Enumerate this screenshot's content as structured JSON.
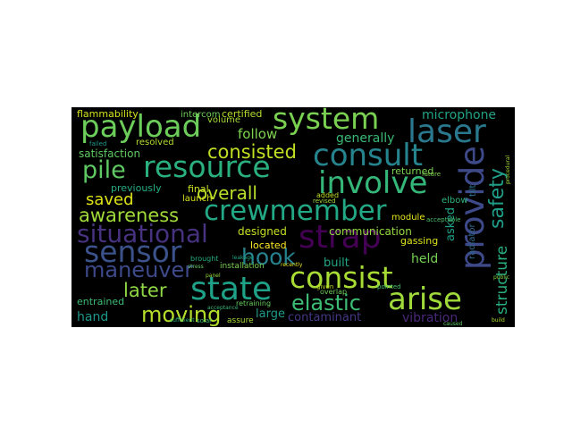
{
  "words": [
    {
      "id": "payload",
      "text": "payload",
      "color": "#6ccd5a"
    },
    {
      "id": "system",
      "text": "system",
      "color": "#7ad151"
    },
    {
      "id": "laser",
      "text": "laser",
      "color": "#2a788e"
    },
    {
      "id": "consult",
      "text": "consult",
      "color": "#25848e"
    },
    {
      "id": "provide",
      "text": "provide",
      "color": "#3e4989"
    },
    {
      "id": "resource",
      "text": "resource",
      "color": "#2ab07f"
    },
    {
      "id": "consisted",
      "text": "consisted",
      "color": "#c2df23"
    },
    {
      "id": "pile",
      "text": "pile",
      "color": "#5ec962"
    },
    {
      "id": "involve",
      "text": "involve",
      "color": "#35b779"
    },
    {
      "id": "crewmember",
      "text": "crewmember",
      "color": "#22a884"
    },
    {
      "id": "awareness",
      "text": "awareness",
      "color": "#a0da39"
    },
    {
      "id": "situational",
      "text": "situational",
      "color": "#46327e"
    },
    {
      "id": "strap",
      "text": "strap",
      "color": "#440154"
    },
    {
      "id": "sensor",
      "text": "sensor",
      "color": "#3b528b"
    },
    {
      "id": "hook",
      "text": "hook",
      "color": "#26828e"
    },
    {
      "id": "state",
      "text": "state",
      "color": "#1fa187"
    },
    {
      "id": "consist",
      "text": "consist",
      "color": "#a8db34"
    },
    {
      "id": "maneuver",
      "text": "maneuver",
      "color": "#3e4989"
    },
    {
      "id": "later",
      "text": "later",
      "color": "#8fd744"
    },
    {
      "id": "arise",
      "text": "arise",
      "color": "#9fda3a"
    },
    {
      "id": "moving",
      "text": "moving",
      "color": "#b5de2b"
    },
    {
      "id": "elastic",
      "text": "elastic",
      "color": "#3dbc74"
    },
    {
      "id": "overall",
      "text": "overall",
      "color": "#b8de29"
    },
    {
      "id": "saved",
      "text": "saved",
      "color": "#dde318"
    },
    {
      "id": "safety",
      "text": "safety",
      "color": "#1f9e89"
    },
    {
      "id": "structure",
      "text": "structure",
      "color": "#29af7f"
    },
    {
      "id": "flammability",
      "text": "flammability",
      "color": "#d2e21b"
    },
    {
      "id": "intercom",
      "text": "intercom",
      "color": "#6ece58"
    },
    {
      "id": "certified",
      "text": "certified",
      "color": "#b5de2b"
    },
    {
      "id": "microphone",
      "text": "microphone",
      "color": "#20a386"
    },
    {
      "id": "follow",
      "text": "follow",
      "color": "#7fd34e"
    },
    {
      "id": "generally",
      "text": "generally",
      "color": "#3aba76"
    },
    {
      "id": "satisfaction",
      "text": "satisfaction",
      "color": "#5ec962"
    },
    {
      "id": "resolved",
      "text": "resolved",
      "color": "#b5de2b"
    },
    {
      "id": "previously",
      "text": "previously",
      "color": "#25ac82"
    },
    {
      "id": "final",
      "text": "final",
      "color": "#c8e020"
    },
    {
      "id": "launch",
      "text": "launch",
      "color": "#d8e219"
    },
    {
      "id": "returned",
      "text": "returned",
      "color": "#7ad151"
    },
    {
      "id": "designed",
      "text": "designed",
      "color": "#c5e021"
    },
    {
      "id": "located",
      "text": "located",
      "color": "#fde725"
    },
    {
      "id": "communication",
      "text": "communication",
      "color": "#95d840"
    },
    {
      "id": "asked",
      "text": "asked",
      "color": "#1fa088"
    },
    {
      "id": "module",
      "text": "module",
      "color": "#e2e418"
    },
    {
      "id": "gassing",
      "text": "gassing",
      "color": "#dde318"
    },
    {
      "id": "held",
      "text": "held",
      "color": "#75d054"
    },
    {
      "id": "built",
      "text": "built",
      "color": "#22a785"
    },
    {
      "id": "large",
      "text": "large",
      "color": "#1e9c89"
    },
    {
      "id": "contaminant",
      "text": "contaminant",
      "color": "#443983"
    },
    {
      "id": "vibration",
      "text": "vibration",
      "color": "#482878"
    },
    {
      "id": "hand",
      "text": "hand",
      "color": "#1f988b"
    },
    {
      "id": "entrained",
      "text": "entrained",
      "color": "#3dbc74"
    },
    {
      "id": "radiator",
      "text": "radiator",
      "color": "#31688e"
    },
    {
      "id": "elbow",
      "text": "elbow",
      "color": "#2fb47c"
    },
    {
      "id": "installation",
      "text": "installation",
      "color": "#7ad151"
    },
    {
      "id": "volume",
      "text": "volume",
      "color": "#a5db36"
    },
    {
      "id": "tilt",
      "text": "tilt",
      "color": "#2c728e"
    },
    {
      "id": "added",
      "text": "added",
      "color": "#c2df23"
    },
    {
      "id": "given",
      "text": "given",
      "color": "#bddf26"
    },
    {
      "id": "overlap",
      "text": "overlap",
      "color": "#6ccd5a"
    },
    {
      "id": "brought",
      "text": "brought",
      "color": "#28ae80"
    },
    {
      "id": "assure",
      "text": "assure",
      "color": "#a8db34"
    },
    {
      "id": "revised",
      "text": "revised",
      "color": "#9fda3a"
    },
    {
      "id": "future",
      "text": "future",
      "color": "#7fd34e"
    },
    {
      "id": "acceptable",
      "text": "acceptable",
      "color": "#4ac16d"
    },
    {
      "id": "recently",
      "text": "recently",
      "color": "#e5e419"
    },
    {
      "id": "pointed",
      "text": "pointed",
      "color": "#46c06f"
    },
    {
      "id": "caused",
      "text": "caused",
      "color": "#5cc863"
    },
    {
      "id": "build",
      "text": "build",
      "color": "#b0dd2f"
    },
    {
      "id": "solar",
      "text": "solar",
      "color": "#3aba76"
    },
    {
      "id": "retraining",
      "text": "retraining",
      "color": "#67cc5c"
    },
    {
      "id": "acceptance",
      "text": "acceptance",
      "color": "#35b779"
    },
    {
      "id": "failed",
      "text": "failed",
      "color": "#1e9b8a"
    },
    {
      "id": "sufficient",
      "text": "sufficient",
      "color": "#2ab07f"
    },
    {
      "id": "public",
      "text": "public",
      "color": "#87d549"
    },
    {
      "id": "procedural",
      "text": "procedural",
      "color": "#a2da37"
    },
    {
      "id": "leakage",
      "text": "leakage",
      "color": "#22a884"
    },
    {
      "id": "stress",
      "text": "stress",
      "color": "#5ec962"
    },
    {
      "id": "panel",
      "text": "panel",
      "color": "#9bd93c"
    }
  ]
}
